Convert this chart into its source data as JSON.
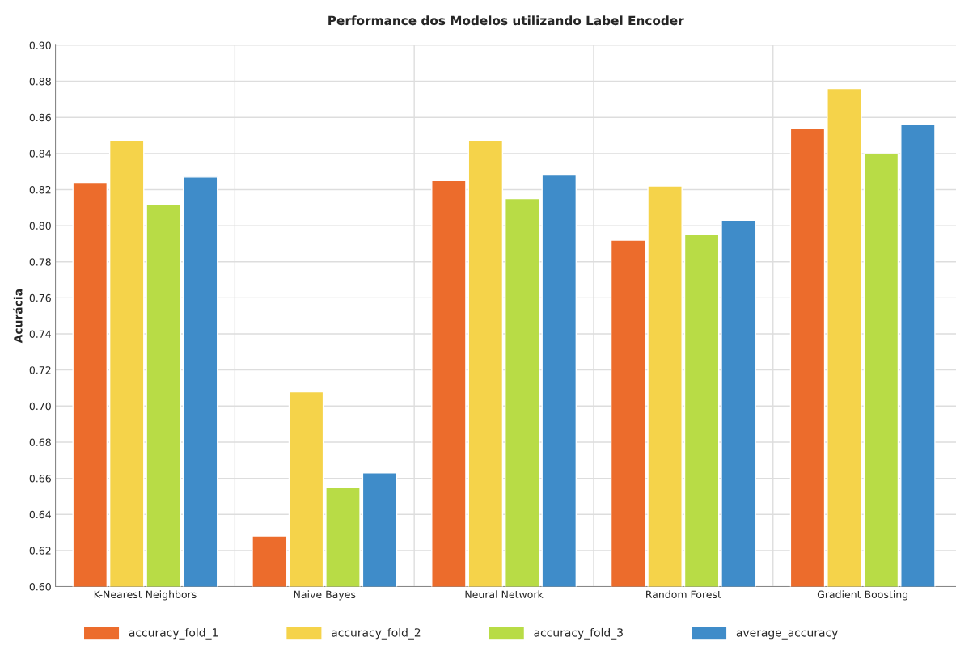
{
  "chart_data": {
    "type": "bar",
    "title": "Performance dos Modelos utilizando Label Encoder",
    "ylabel": "Acurácia",
    "categories": [
      "K-Nearest Neighbors",
      "Naive Bayes",
      "Neural Network",
      "Random Forest",
      "Gradient Boosting"
    ],
    "series": [
      {
        "name": "accuracy_fold_1",
        "color": "#ec6c2c",
        "values": [
          0.824,
          0.628,
          0.825,
          0.792,
          0.854
        ]
      },
      {
        "name": "accuracy_fold_2",
        "color": "#f5d34a",
        "values": [
          0.847,
          0.708,
          0.847,
          0.822,
          0.876
        ]
      },
      {
        "name": "accuracy_fold_3",
        "color": "#b8dc46",
        "values": [
          0.812,
          0.655,
          0.815,
          0.795,
          0.84
        ]
      },
      {
        "name": "average_accuracy",
        "color": "#3f8cc9",
        "values": [
          0.827,
          0.663,
          0.828,
          0.803,
          0.856
        ]
      }
    ],
    "ylim": [
      0.6,
      0.9
    ],
    "yticks": [
      {
        "value": 0.6,
        "label": "0.60"
      },
      {
        "value": 0.62,
        "label": "0.62"
      },
      {
        "value": 0.64,
        "label": "0.64"
      },
      {
        "value": 0.66,
        "label": "0.66"
      },
      {
        "value": 0.68,
        "label": "0.68"
      },
      {
        "value": 0.7,
        "label": "0.70"
      },
      {
        "value": 0.72,
        "label": "0.72"
      },
      {
        "value": 0.74,
        "label": "0.74"
      },
      {
        "value": 0.76,
        "label": "0.76"
      },
      {
        "value": 0.78,
        "label": "0.78"
      },
      {
        "value": 0.8,
        "label": "0.80"
      },
      {
        "value": 0.82,
        "label": "0.82"
      },
      {
        "value": 0.84,
        "label": "0.84"
      },
      {
        "value": 0.86,
        "label": "0.86"
      },
      {
        "value": 0.88,
        "label": "0.88"
      },
      {
        "value": 0.9,
        "label": "0.90"
      }
    ],
    "grid": true,
    "legend": "bottom"
  }
}
